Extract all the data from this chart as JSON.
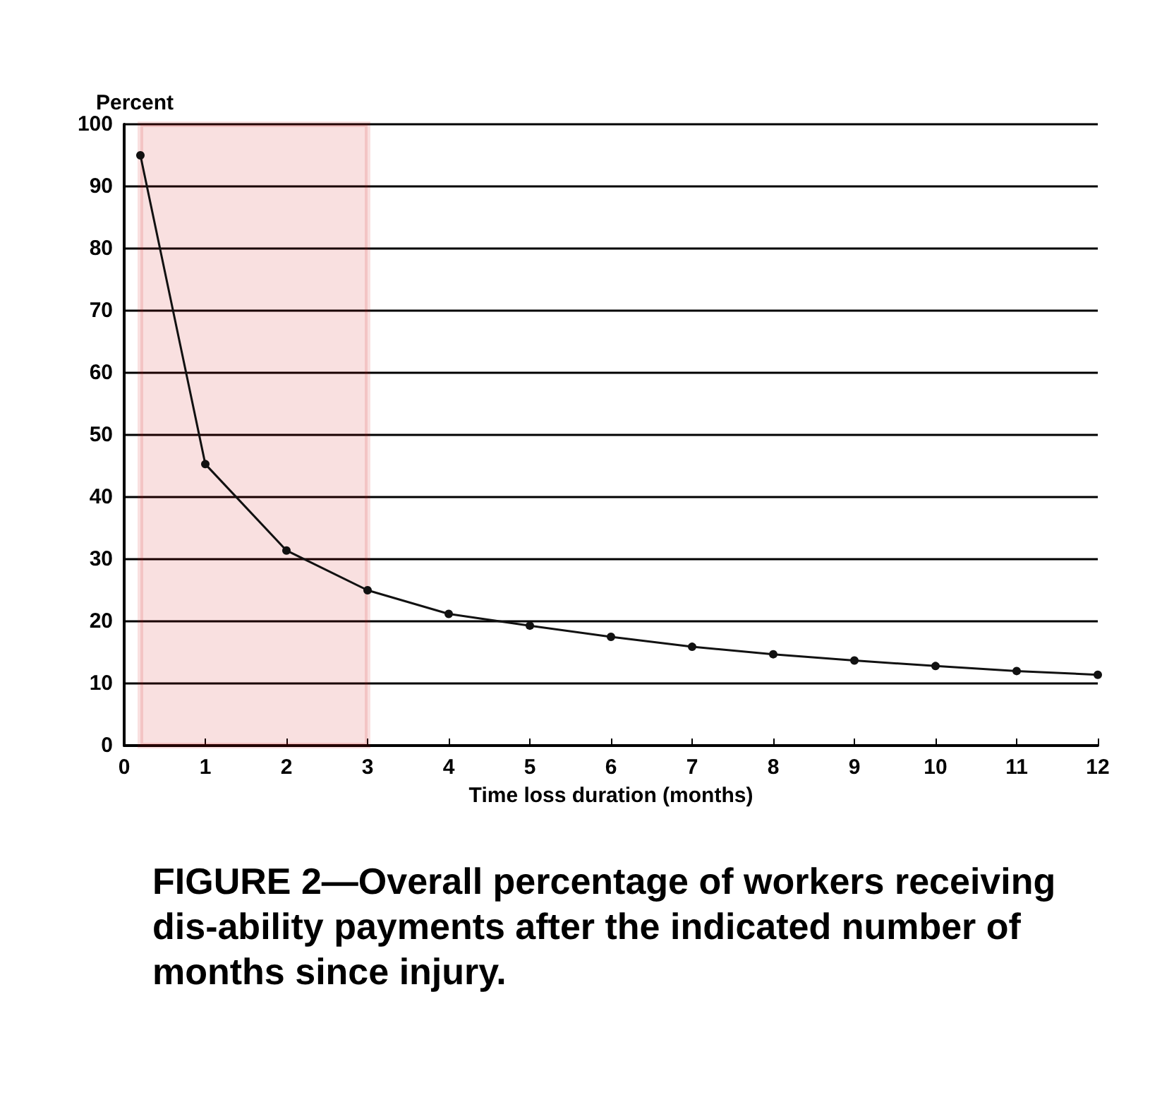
{
  "chart_data": {
    "type": "line",
    "title": "FIGURE 2—Overall percentage of workers receiving dis-ability payments after the indicated number of months since injury.",
    "xlabel": "Time loss duration (months)",
    "ylabel": "Percent",
    "x": [
      0.2,
      1,
      2,
      3,
      4,
      5,
      6,
      7,
      8,
      9,
      10,
      11,
      12
    ],
    "series": [
      {
        "color": "#111111",
        "values": [
          95,
          45.3,
          31.4,
          25,
          21.2,
          19.3,
          17.5,
          15.9,
          14.7,
          13.7,
          12.8,
          12,
          11.4
        ]
      }
    ],
    "xlim": [
      0,
      12
    ],
    "xticks": [
      0,
      1,
      2,
      3,
      4,
      5,
      6,
      7,
      8,
      9,
      10,
      11,
      12
    ],
    "ylim": [
      0,
      100
    ],
    "yticks": [
      0,
      10,
      20,
      30,
      40,
      50,
      60,
      70,
      80,
      90,
      100
    ],
    "bands": [
      {
        "axis": "x",
        "from": 0.2,
        "to": 3,
        "color": "#cc0000"
      }
    ],
    "grid": "y",
    "marker": "circle",
    "line_style": "solid"
  }
}
